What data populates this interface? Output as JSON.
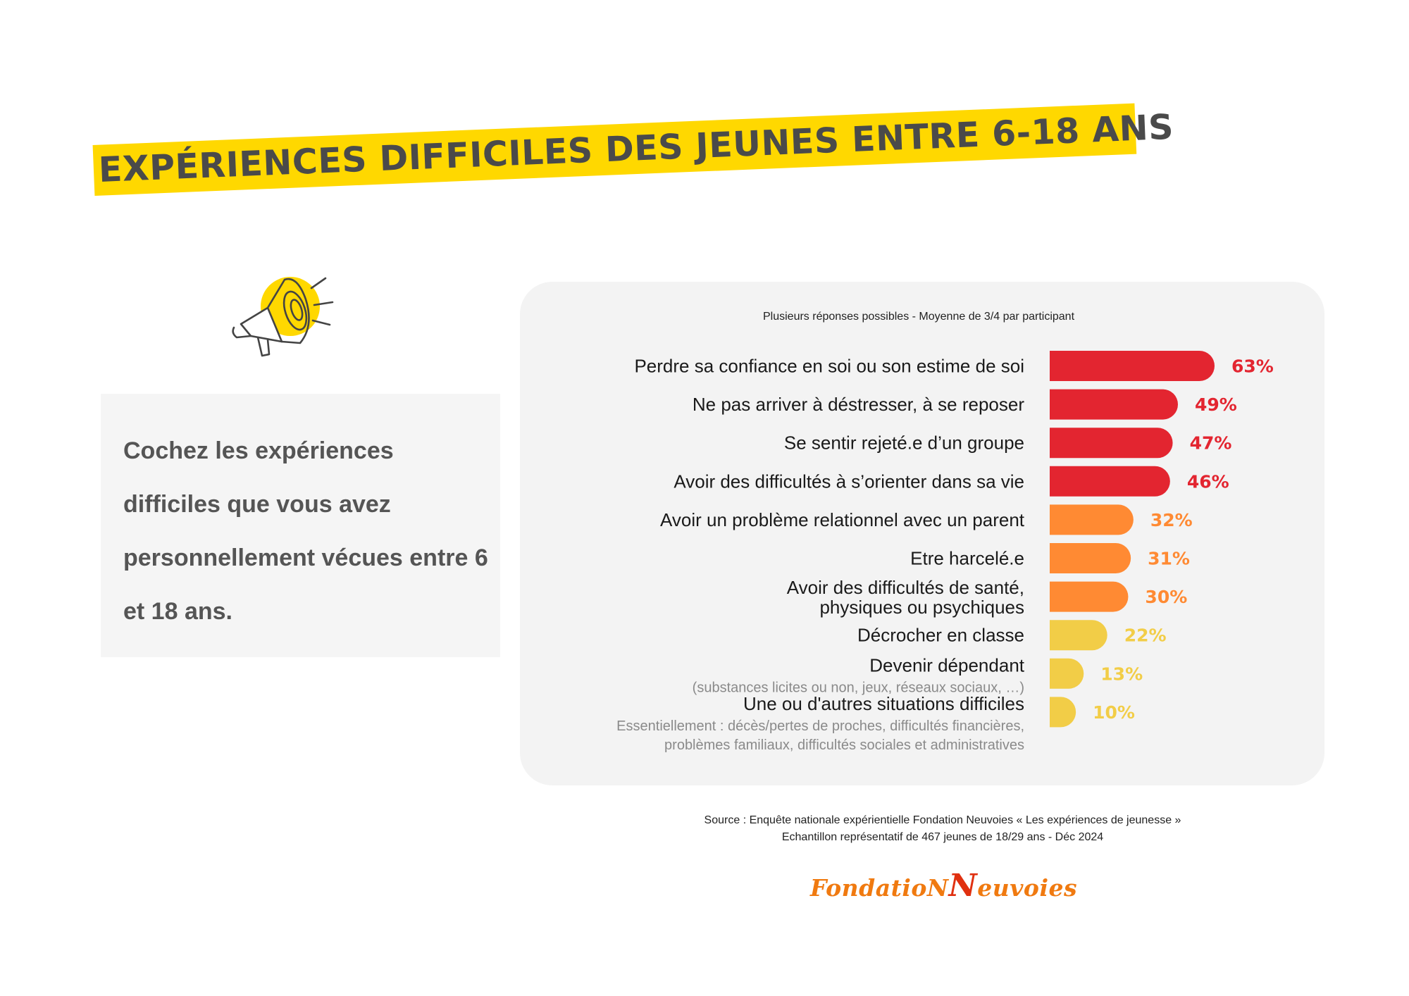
{
  "page_title": "EXPÉRIENCES DIFFICILES DES JEUNES ENTRE 6-18 ANS",
  "prompt": "Cochez les expériences difficiles que vous avez personnellement vécues entre 6 et 18 ans.",
  "icon": "megaphone-icon",
  "colors": {
    "band": "#ffd800",
    "red": "#e32530",
    "orange": "#ff8a33",
    "yellow": "#f2cd47"
  },
  "chart_data": {
    "type": "bar",
    "orientation": "horizontal",
    "subtitle": "Plusieurs réponses possibles - Moyenne de 3/4 par participant",
    "unit": "%",
    "categories": [
      "Perdre sa confiance en soi ou son estime de soi",
      "Ne pas arriver à déstresser, à se reposer",
      "Se sentir rejeté.e d’un groupe",
      "Avoir des difficultés à s’orienter dans sa vie",
      "Avoir un problème relationnel avec un parent",
      "Etre harcelé.e",
      "Avoir des difficultés de santé, physiques ou psychiques",
      "Décrocher en classe",
      "Devenir dépendant",
      "Une ou d'autres situations difficiles"
    ],
    "values": [
      63,
      49,
      47,
      46,
      32,
      31,
      30,
      22,
      13,
      10
    ],
    "value_labels": [
      "63%",
      "49%",
      "47%",
      "46%",
      "32%",
      "31%",
      "30%",
      "22%",
      "13%",
      "10%"
    ],
    "notes": [
      "",
      "",
      "",
      "",
      "",
      "",
      "",
      "",
      "(substances licites ou non, jeux, réseaux sociaux, …)",
      "Essentiellement : décès/pertes de proches, difficultés financières, problèmes familiaux, difficultés sociales et administratives"
    ],
    "bar_colors": [
      "red",
      "red",
      "red",
      "red",
      "orange",
      "orange",
      "orange",
      "yellow",
      "yellow",
      "yellow"
    ],
    "xlim": [
      0,
      63
    ]
  },
  "source": {
    "line1": "Source : Enquête nationale expérientielle Fondation Neuvoies « Les expériences de jeunesse »",
    "line2": "Echantillon représentatif de 467 jeunes de 18/29 ans -  Déc 2024"
  },
  "logo": {
    "part1": "FondatioN",
    "part2": "N",
    "part3": "euvoies"
  }
}
